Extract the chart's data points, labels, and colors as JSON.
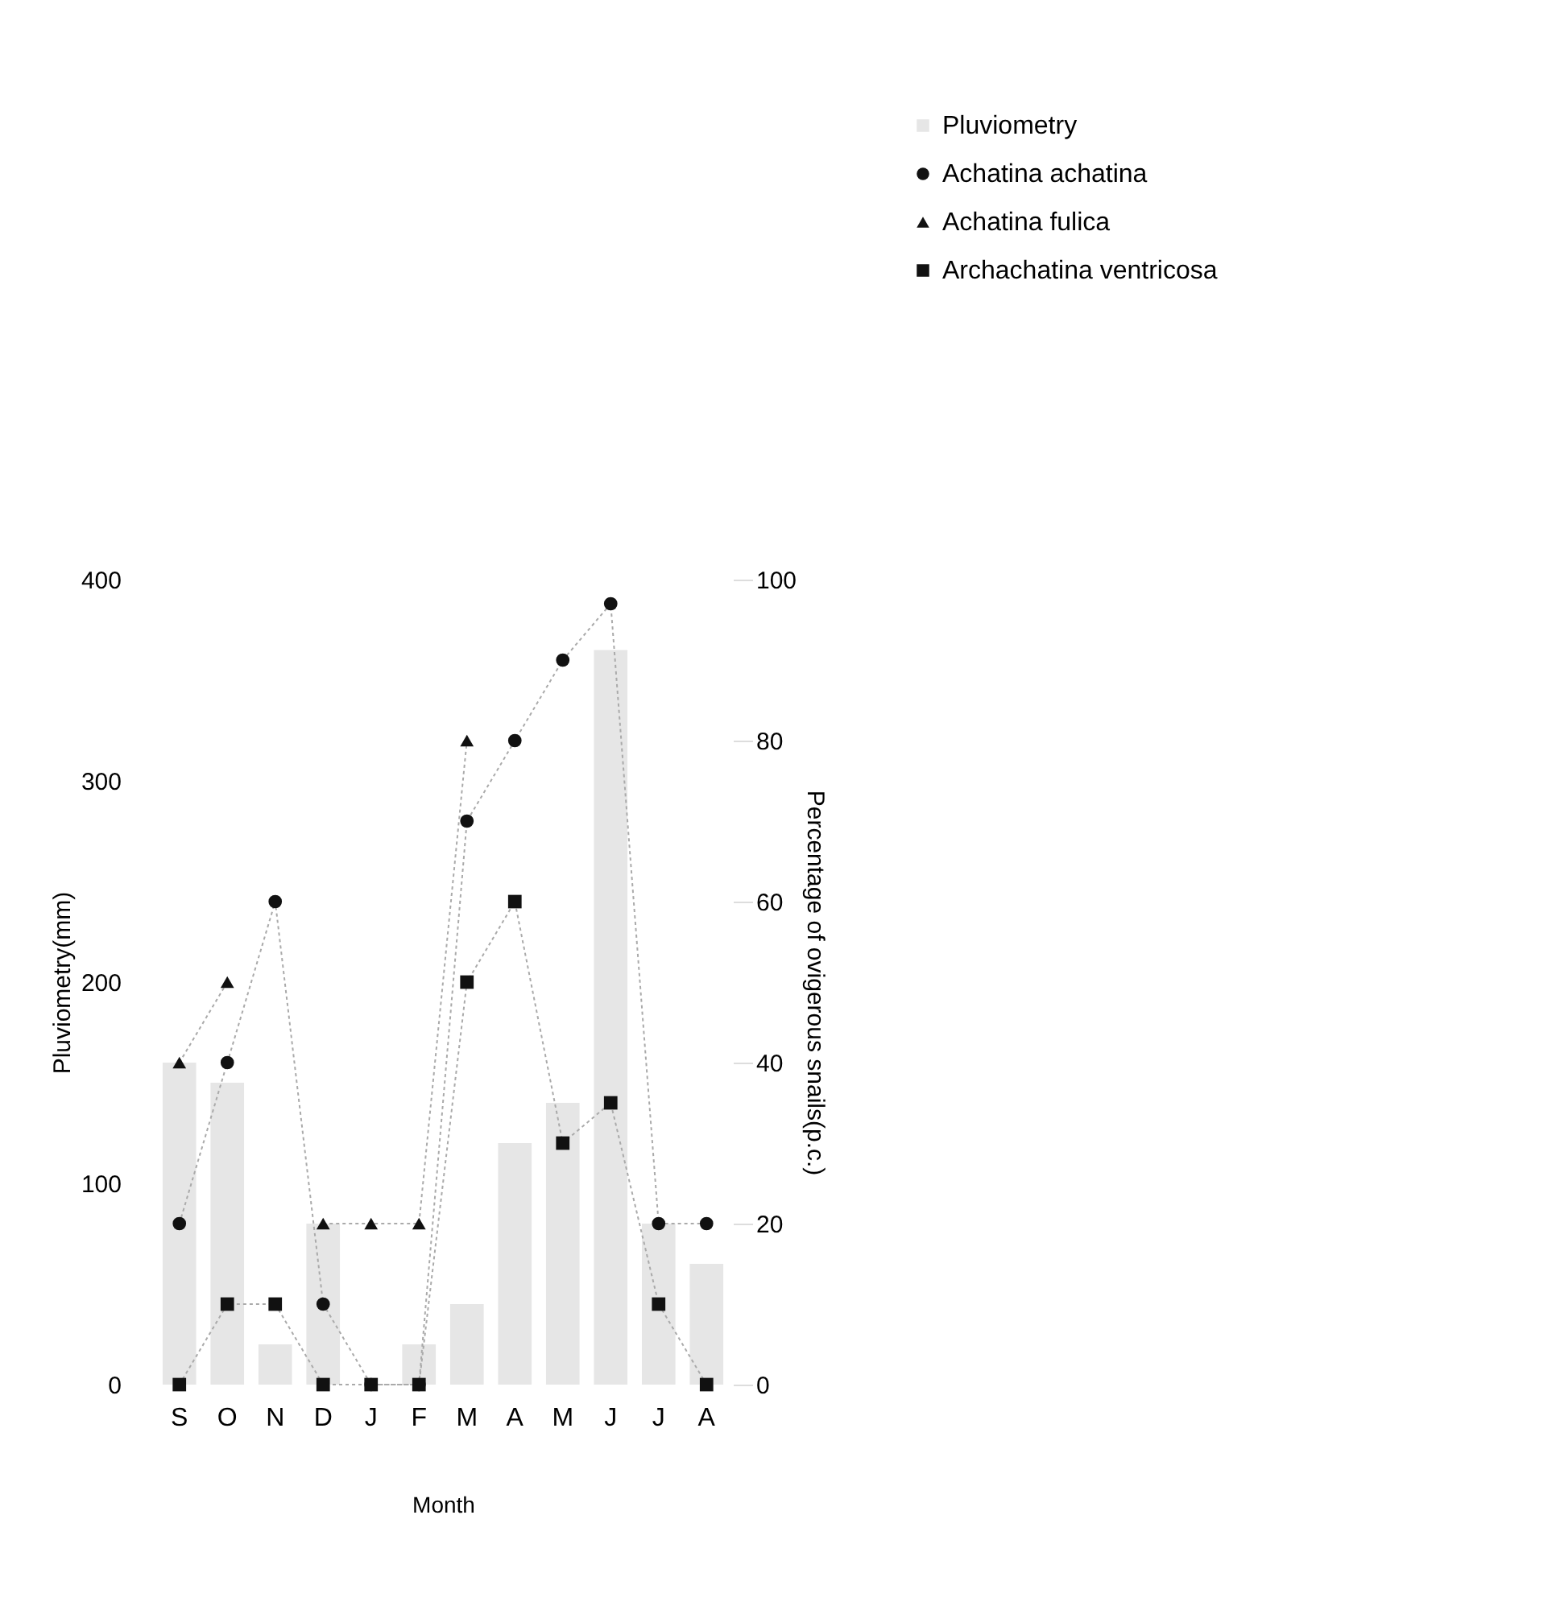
{
  "chart_data": {
    "type": "bar",
    "xlabel": "Month",
    "ylabel": "Pluviometry(mm)",
    "y2label": "Percentage of ovigerous snails(p.c.)",
    "categories": [
      "S",
      "O",
      "N",
      "D",
      "J",
      "F",
      "M",
      "A",
      "M",
      "J",
      "J",
      "A"
    ],
    "ylim": [
      0,
      400
    ],
    "yticks": [
      0,
      100,
      200,
      300,
      400
    ],
    "y2lim": [
      0,
      100
    ],
    "y2ticks": [
      0,
      20,
      40,
      60,
      80,
      100
    ],
    "legend": "top right",
    "grid": false,
    "series": [
      {
        "name": "Pluviometry",
        "color": "#e6e6e6",
        "values": [
          160,
          150,
          20,
          80,
          null,
          20,
          40,
          120,
          140,
          365,
          80,
          60
        ]
      },
      {
        "name": "Achatina achatina",
        "type": "line",
        "axis": "y2",
        "marker": "circle",
        "line_style": "dotted",
        "color": "#111111",
        "values": [
          20,
          40,
          60,
          10,
          0,
          0,
          70,
          80,
          90,
          97,
          20,
          20
        ]
      },
      {
        "name": "Achatina fulica",
        "type": "line",
        "axis": "y2",
        "marker": "triangle",
        "line_style": "dotted",
        "color": "#111111",
        "values": [
          40,
          50,
          null,
          20,
          20,
          20,
          80,
          null,
          null,
          null,
          null,
          null
        ]
      },
      {
        "name": "Archachatina ventricosa",
        "type": "line",
        "axis": "y2",
        "marker": "square",
        "line_style": "dotted",
        "color": "#111111",
        "values": [
          0,
          10,
          10,
          0,
          0,
          0,
          50,
          60,
          30,
          35,
          10,
          0
        ]
      }
    ]
  }
}
